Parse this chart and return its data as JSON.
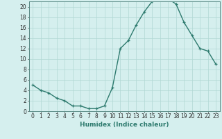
{
  "x": [
    0,
    1,
    2,
    3,
    4,
    5,
    6,
    7,
    8,
    9,
    10,
    11,
    12,
    13,
    14,
    15,
    16,
    17,
    18,
    19,
    20,
    21,
    22,
    23
  ],
  "y": [
    5,
    4,
    3.5,
    2.5,
    2,
    1,
    1,
    0.5,
    0.5,
    1,
    4.5,
    12,
    13.5,
    16.5,
    19,
    21,
    21.5,
    21.5,
    20.5,
    17,
    14.5,
    12,
    11.5,
    9
  ],
  "line_color": "#2d7a6e",
  "marker_color": "#2d7a6e",
  "bg_color": "#d5efee",
  "grid_color": "#b0d8d4",
  "xlabel": "Humidex (Indice chaleur)",
  "xlim": [
    -0.5,
    23.5
  ],
  "ylim": [
    0,
    21
  ],
  "yticks": [
    0,
    2,
    4,
    6,
    8,
    10,
    12,
    14,
    16,
    18,
    20
  ],
  "xlabel_fontsize": 6.5,
  "tick_fontsize": 5.5,
  "line_width": 1.0,
  "marker_size": 3.5
}
